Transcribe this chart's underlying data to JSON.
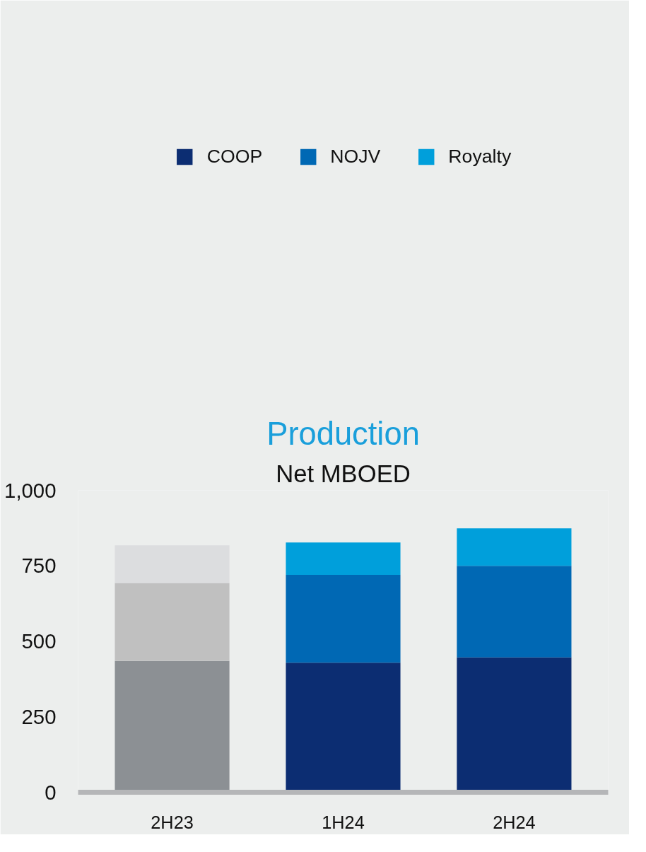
{
  "chart_data": {
    "type": "bar",
    "title": "Production",
    "subtitle": "Net MBOED",
    "categories": [
      "2H23",
      "1H24",
      "2H24"
    ],
    "stacked": true,
    "series": [
      {
        "name": "COOP",
        "color": "#0c2d72",
        "colors": [
          "#8c9094",
          "#0c2d72",
          "#0c2d72"
        ],
        "values": [
          435,
          429,
          447
        ]
      },
      {
        "name": "NOJV",
        "color": "#0068b4",
        "colors": [
          "#c0c0c0",
          "#0068b4",
          "#0068b4"
        ],
        "values": [
          258,
          291,
          303
        ]
      },
      {
        "name": "Royalty",
        "color": "#009fdb",
        "colors": [
          "#dcdddf",
          "#009fdb",
          "#009fdb"
        ],
        "values": [
          125,
          107,
          124
        ]
      }
    ],
    "ylim": [
      0,
      1000
    ],
    "yticks": [
      0,
      250,
      500,
      750,
      {
        "value": 1000,
        "label": "1,000"
      }
    ],
    "grid": false,
    "legend": "top"
  }
}
